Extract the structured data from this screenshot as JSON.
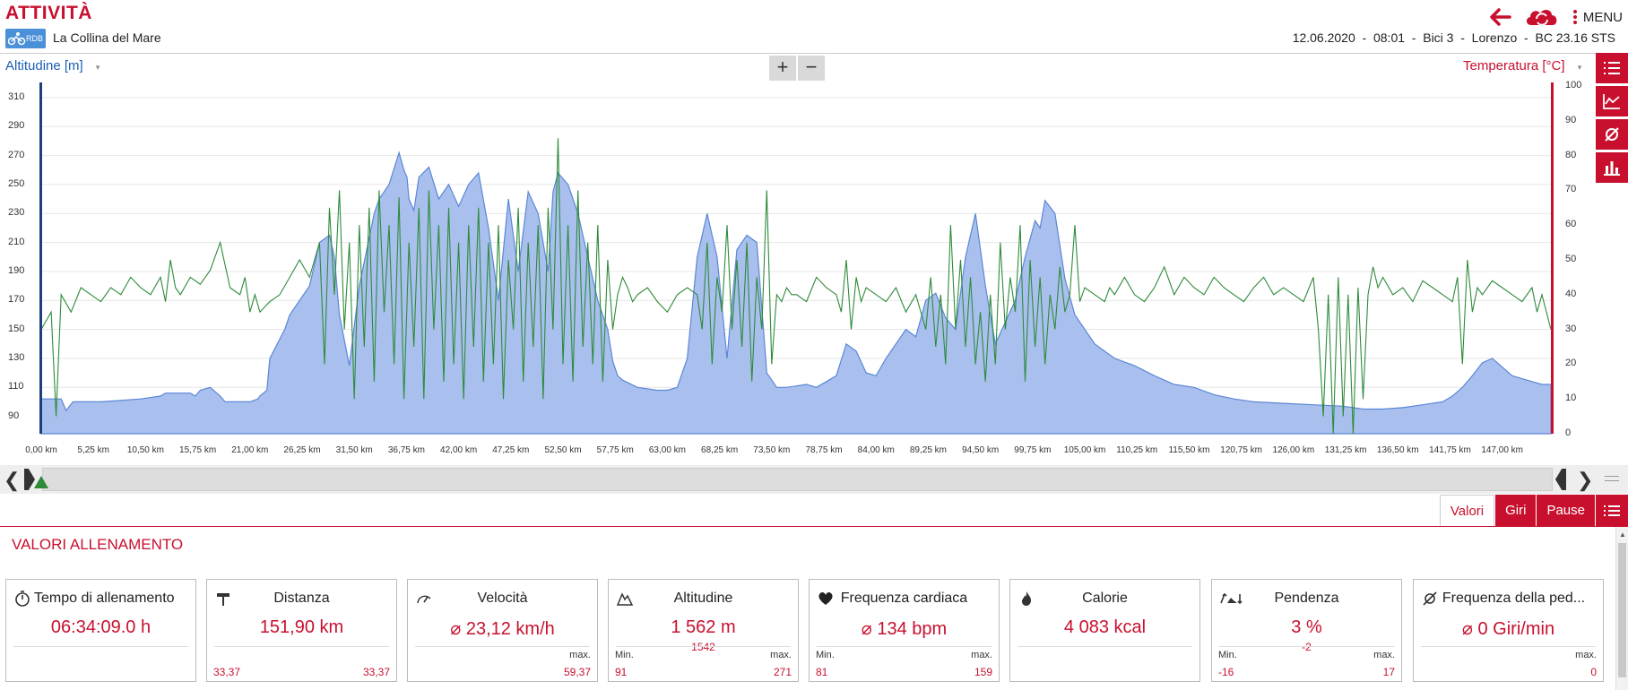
{
  "header": {
    "title": "ATTIVITÀ",
    "logo_text": "RDB",
    "route_name": "La Collina del Mare",
    "menu_label": "MENU",
    "info": "12.06.2020  -  08:01  -  Bici 3  -  Lorenzo  -  BC 23.16 STS",
    "accent_color": "#c8102e"
  },
  "chart_controls": {
    "left_axis_label": "Altitudine [m]",
    "right_axis_label": "Temperatura [°C]",
    "zoom_in": "+",
    "zoom_out": "−"
  },
  "chart_data": {
    "type": "area",
    "x_tick_labels": [
      "0,00 km",
      "5,25 km",
      "10,50 km",
      "15,75 km",
      "21,00 km",
      "26,25 km",
      "31,50 km",
      "36,75 km",
      "42,00 km",
      "47,25 km",
      "52,50 km",
      "57,75 km",
      "63,00 km",
      "68,25 km",
      "73,50 km",
      "78,75 km",
      "84,00 km",
      "89,25 km",
      "94,50 km",
      "99,75 km",
      "105,00 km",
      "110,25 km",
      "115,50 km",
      "120,75 km",
      "126,00 km",
      "131,25 km",
      "136,50 km",
      "141,75 km",
      "147,00 km"
    ],
    "left_ticks": [
      "310",
      "290",
      "270",
      "250",
      "230",
      "210",
      "190",
      "170",
      "150",
      "130",
      "110",
      "90"
    ],
    "right_ticks": [
      "100",
      "90",
      "80",
      "70",
      "60",
      "50",
      "40",
      "30",
      "20",
      "10",
      "0"
    ],
    "xlim_km": [
      0,
      151.9
    ],
    "left_ylim": [
      78,
      318
    ],
    "right_ylim": [
      0,
      100
    ],
    "grid": true,
    "series": [
      {
        "name": "Altitudine [m]",
        "color": "#5b86d6",
        "fill": "#a9c0ee",
        "x": [
          0,
          2,
          2.5,
          3.2,
          3.5,
          6,
          10,
          12,
          12.5,
          15,
          15.5,
          16,
          17,
          18,
          18.5,
          21,
          21.8,
          22,
          22.7,
          23,
          24.5,
          25,
          27,
          28,
          29,
          29.5,
          30,
          31,
          32,
          33.5,
          34,
          35,
          36,
          36.5,
          36.8,
          37,
          37.5,
          38,
          39,
          40,
          41,
          42,
          43,
          44,
          45,
          46,
          47,
          48,
          49,
          50,
          51,
          51.5,
          52,
          53,
          54,
          55,
          56,
          57,
          57.5,
          58,
          58.5,
          60,
          62,
          63,
          64,
          65,
          66,
          67,
          68,
          69,
          70,
          71,
          72,
          73,
          74,
          75,
          77,
          78,
          80,
          81,
          82,
          83,
          84,
          85,
          86,
          87,
          88,
          89,
          90,
          91,
          92,
          93,
          94,
          95,
          96,
          97,
          98,
          99,
          100,
          100.5,
          101,
          102,
          103,
          104,
          106,
          108,
          110,
          112,
          114,
          116,
          118,
          120,
          122,
          125,
          128,
          131,
          133,
          135,
          137,
          139,
          141,
          142,
          143,
          144,
          145,
          146,
          148,
          150,
          151,
          151.9
        ],
        "y": [
          102,
          102,
          94,
          100,
          100,
          100,
          102,
          104,
          106,
          106,
          104,
          108,
          110,
          104,
          100,
          100,
          102,
          104,
          108,
          130,
          150,
          160,
          180,
          210,
          215,
          200,
          160,
          125,
          180,
          230,
          240,
          250,
          272,
          260,
          255,
          240,
          232,
          255,
          262,
          240,
          250,
          235,
          250,
          258,
          220,
          170,
          240,
          190,
          245,
          230,
          190,
          245,
          258,
          250,
          230,
          200,
          170,
          150,
          128,
          118,
          115,
          110,
          108,
          108,
          110,
          130,
          200,
          230,
          200,
          130,
          205,
          215,
          210,
          120,
          110,
          110,
          112,
          110,
          118,
          140,
          135,
          120,
          118,
          130,
          140,
          150,
          145,
          170,
          175,
          158,
          150,
          200,
          230,
          180,
          140,
          155,
          170,
          200,
          225,
          220,
          239,
          230,
          185,
          160,
          140,
          130,
          125,
          118,
          112,
          110,
          105,
          102,
          100,
          99,
          98,
          97,
          95,
          95,
          96,
          98,
          100,
          104,
          110,
          118,
          127,
          130,
          118,
          114,
          112,
          112
        ],
        "unit": "m"
      },
      {
        "name": "Temperatura [°C]",
        "color": "#2e8b3a",
        "x": [
          0,
          1,
          1.5,
          2,
          3,
          4,
          5,
          6,
          7,
          8,
          9,
          10,
          11,
          12,
          12.5,
          13,
          13.5,
          14,
          15,
          16,
          17,
          18,
          19,
          20,
          20.5,
          21,
          21.5,
          22,
          23,
          24,
          25,
          26,
          27,
          28,
          28.5,
          29,
          29.5,
          30,
          30.5,
          31,
          31.5,
          32,
          32.5,
          33,
          33.5,
          34,
          34.5,
          35,
          35.5,
          36,
          36.5,
          37,
          37.5,
          38,
          38.5,
          39,
          39.5,
          40,
          40.5,
          41,
          41.5,
          42,
          42.5,
          43,
          43.5,
          44,
          44.5,
          45,
          45.5,
          46,
          46.5,
          47,
          47.5,
          48,
          48.5,
          49,
          49.5,
          50,
          50.5,
          51,
          51.5,
          52,
          52.5,
          53,
          53.5,
          54,
          54.5,
          55,
          55.5,
          56,
          56.5,
          57,
          57.5,
          58,
          58.5,
          59,
          59.5,
          60,
          61,
          62,
          63,
          64,
          65,
          66,
          66.5,
          67,
          67.5,
          68,
          68.5,
          69,
          69.5,
          70,
          70.5,
          71,
          71.5,
          72,
          72.5,
          73,
          73.5,
          74,
          74.5,
          75,
          75.5,
          76,
          77,
          78,
          79,
          80,
          80.5,
          81,
          81.5,
          82,
          82.5,
          83,
          84,
          85,
          86,
          87,
          88,
          89,
          89.5,
          90,
          90.5,
          91,
          91.5,
          92,
          92.5,
          93,
          93.5,
          94,
          94.5,
          95,
          95.5,
          96,
          96.5,
          97,
          97.5,
          98,
          98.5,
          99,
          99.5,
          100,
          100.5,
          101,
          101.5,
          102,
          102.5,
          103,
          103.5,
          104,
          104.5,
          105,
          106,
          107,
          107.5,
          108,
          109,
          110,
          111,
          112,
          113,
          114,
          115,
          116,
          117,
          118,
          119,
          120,
          121,
          122,
          123,
          124,
          125,
          126,
          127,
          128,
          128.5,
          129,
          129.5,
          130,
          130.5,
          131,
          131.5,
          132,
          132.5,
          133,
          133.5,
          134,
          134.5,
          135,
          136,
          137,
          138,
          139,
          140,
          141,
          142,
          142.5,
          143,
          143.5,
          144,
          144.5,
          145,
          146,
          147,
          148,
          149,
          150,
          150.5,
          151,
          151.9
        ],
        "y": [
          30,
          35,
          5,
          40,
          35,
          42,
          40,
          38,
          42,
          40,
          45,
          42,
          40,
          45,
          38,
          50,
          42,
          40,
          45,
          43,
          47,
          55,
          42,
          40,
          45,
          35,
          40,
          35,
          38,
          40,
          45,
          50,
          45,
          55,
          20,
          65,
          40,
          70,
          30,
          55,
          10,
          60,
          25,
          65,
          15,
          70,
          35,
          60,
          20,
          68,
          10,
          55,
          25,
          65,
          10,
          70,
          30,
          60,
          15,
          65,
          20,
          55,
          10,
          60,
          25,
          65,
          15,
          55,
          20,
          60,
          10,
          50,
          30,
          65,
          15,
          55,
          25,
          60,
          10,
          65,
          30,
          85,
          20,
          60,
          15,
          70,
          25,
          55,
          20,
          60,
          15,
          50,
          30,
          40,
          45,
          42,
          38,
          40,
          42,
          38,
          35,
          40,
          42,
          40,
          30,
          55,
          20,
          45,
          35,
          60,
          30,
          50,
          25,
          55,
          15,
          45,
          30,
          70,
          20,
          40,
          38,
          42,
          40,
          40,
          38,
          45,
          42,
          40,
          35,
          50,
          30,
          45,
          38,
          42,
          40,
          38,
          42,
          35,
          40,
          30,
          45,
          25,
          40,
          20,
          60,
          30,
          50,
          25,
          45,
          20,
          35,
          15,
          40,
          20,
          55,
          30,
          45,
          35,
          60,
          15,
          50,
          25,
          45,
          20,
          40,
          30,
          48,
          35,
          40,
          60,
          38,
          42,
          40,
          38,
          42,
          40,
          45,
          40,
          38,
          42,
          48,
          40,
          45,
          42,
          40,
          45,
          42,
          40,
          38,
          42,
          45,
          40,
          42,
          40,
          38,
          45,
          30,
          5,
          40,
          0,
          45,
          5,
          40,
          0,
          42,
          10,
          40,
          48,
          42,
          45,
          40,
          42,
          38,
          44,
          42,
          40,
          38,
          45,
          20,
          50,
          35,
          42,
          40,
          44,
          42,
          40,
          38,
          42,
          35,
          40,
          30
        ],
        "unit": "°C"
      }
    ]
  },
  "tabs": [
    "Valori",
    "Giri",
    "Pause"
  ],
  "section_title": "VALORI ALLENAMENTO",
  "cards": [
    {
      "title": "Tempo di allenamento",
      "icon": "stopwatch-icon",
      "value": "06:34:09.0 h",
      "sub": "",
      "l1": "",
      "r1": "",
      "l2": "",
      "r2": ""
    },
    {
      "title": "Distanza",
      "icon": "signpost-icon",
      "value": "151,90 km",
      "sub": "",
      "l1": "",
      "r1": "",
      "l2": "33,37",
      "r2": "33,37"
    },
    {
      "title": "Velocità",
      "icon": "speedometer-icon",
      "value": "⌀ 23,12 km/h",
      "sub": "",
      "l1": "",
      "r1": "max.",
      "l2": "",
      "r2": "59,37"
    },
    {
      "title": "Altitudine",
      "icon": "mountain-icon",
      "value": "1 562 m",
      "sub": "1542",
      "l1": "Min.",
      "r1": "max.",
      "l2": "91",
      "r2": "271"
    },
    {
      "title": "Frequenza cardiaca",
      "icon": "heart-icon",
      "value": "⌀ 134 bpm",
      "sub": "",
      "l1": "Min.",
      "r1": "max.",
      "l2": "81",
      "r2": "159"
    },
    {
      "title": "Calorie",
      "icon": "flame-icon",
      "value": "4 083 kcal",
      "sub": "",
      "l1": "",
      "r1": "",
      "l2": "",
      "r2": ""
    },
    {
      "title": "Pendenza",
      "icon": "slope-icon",
      "value": "3 %",
      "sub": "-2",
      "l1": "Min.",
      "r1": "max.",
      "l2": "-16",
      "r2": "17"
    },
    {
      "title": "Frequenza della ped...",
      "icon": "cadence-icon",
      "value": "⌀ 0 Giri/min",
      "sub": "",
      "l1": "",
      "r1": "max.",
      "l2": "",
      "r2": "0"
    }
  ]
}
